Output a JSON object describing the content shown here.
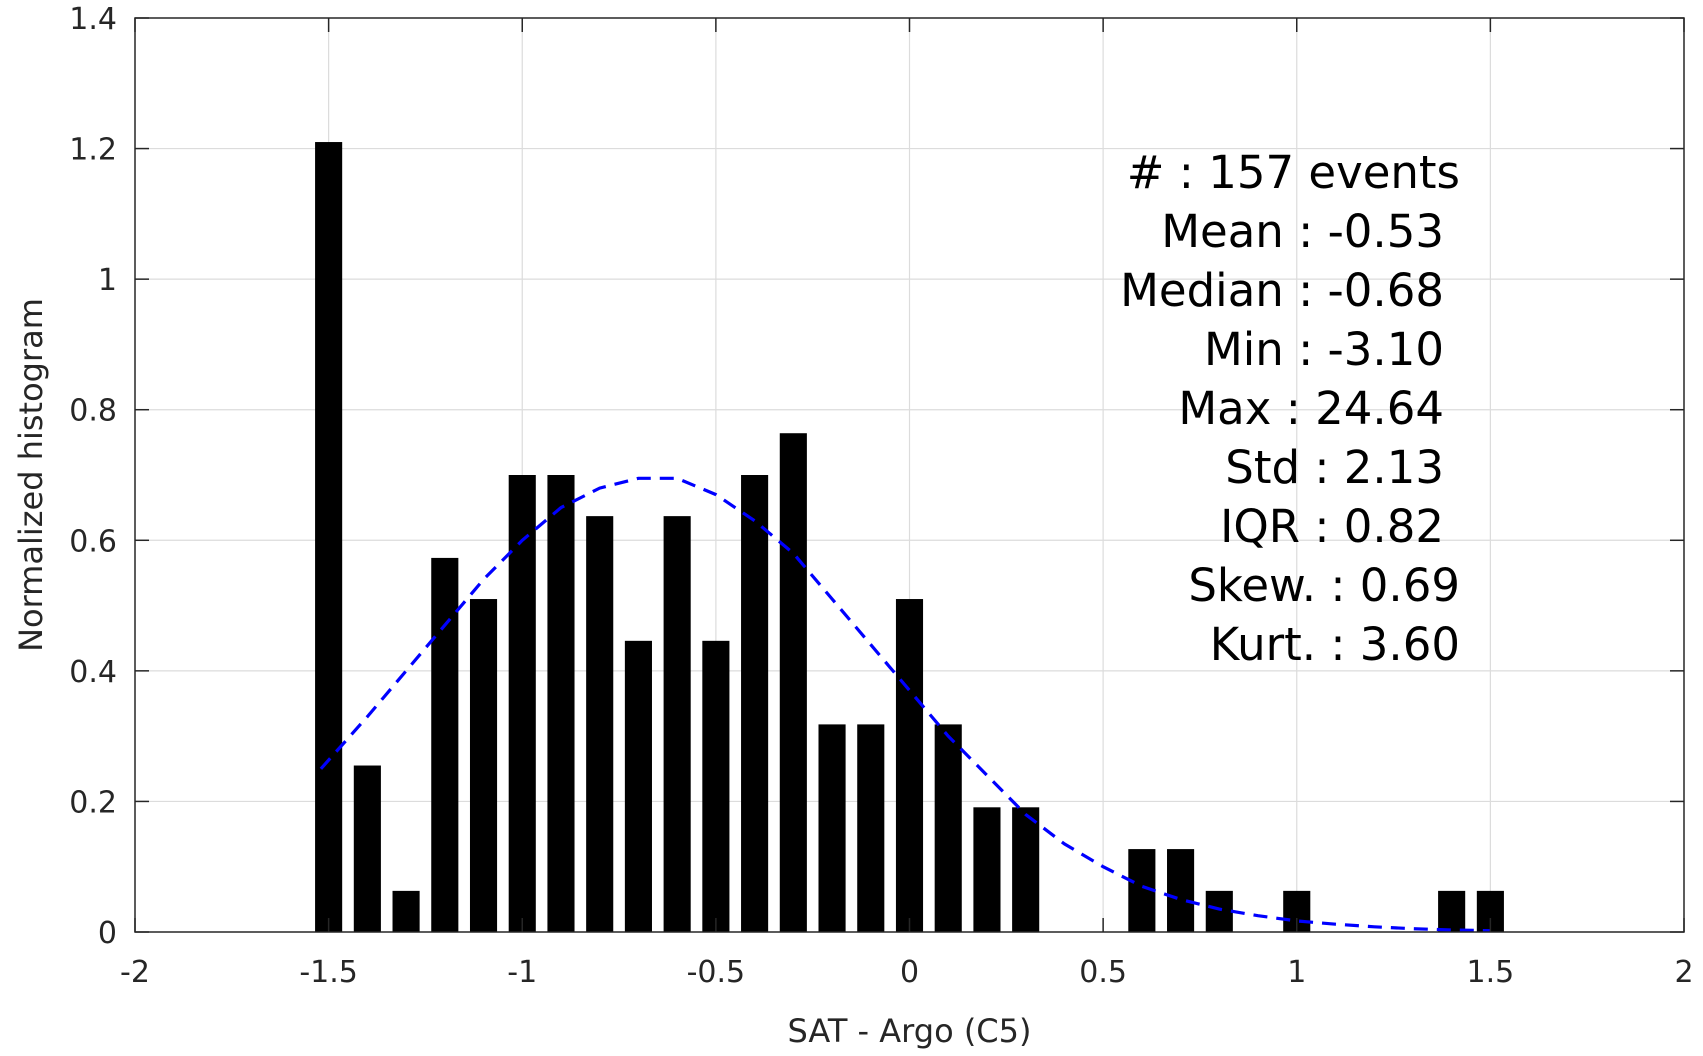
{
  "chart_data": {
    "type": "bar",
    "xlabel": "SAT - Argo (C5)",
    "ylabel": "Normalized histogram",
    "xlim": [
      -2,
      2
    ],
    "ylim": [
      0,
      1.4
    ],
    "xticks": [
      -2,
      -1.5,
      -1,
      -0.5,
      0,
      0.5,
      1,
      1.5,
      2
    ],
    "xtick_labels": [
      "-2",
      "-1.5",
      "-1",
      "-0.5",
      "0",
      "0.5",
      "1",
      "1.5",
      "2"
    ],
    "yticks": [
      0,
      0.2,
      0.4,
      0.6,
      0.8,
      1,
      1.2,
      1.4
    ],
    "ytick_labels": [
      "0",
      "0.2",
      "0.4",
      "0.6",
      "0.8",
      "1",
      "1.2",
      "1.4"
    ],
    "grid": true,
    "bar_color": "#000000",
    "bar_width": 0.07,
    "bars": {
      "x": [
        -1.5,
        -1.4,
        -1.3,
        -1.2,
        -1.1,
        -1.0,
        -0.9,
        -0.8,
        -0.7,
        -0.6,
        -0.5,
        -0.4,
        -0.3,
        -0.2,
        -0.1,
        0.0,
        0.1,
        0.2,
        0.3,
        0.6,
        0.7,
        0.8,
        1.0,
        1.4,
        1.5
      ],
      "values": [
        1.21,
        0.255,
        0.063,
        0.573,
        0.51,
        0.7,
        0.7,
        0.637,
        0.446,
        0.637,
        0.446,
        0.7,
        0.764,
        0.318,
        0.318,
        0.51,
        0.318,
        0.191,
        0.191,
        0.127,
        0.127,
        0.063,
        0.063,
        0.063,
        0.063
      ]
    },
    "fit_curve": {
      "color": "#0000ff",
      "style": "dashed",
      "x": [
        -1.52,
        -1.4,
        -1.3,
        -1.2,
        -1.1,
        -1.0,
        -0.9,
        -0.8,
        -0.7,
        -0.6,
        -0.5,
        -0.4,
        -0.3,
        -0.2,
        -0.1,
        0.0,
        0.1,
        0.2,
        0.3,
        0.4,
        0.5,
        0.6,
        0.7,
        0.8,
        0.9,
        1.0,
        1.1,
        1.2,
        1.3,
        1.4,
        1.5
      ],
      "values": [
        0.25,
        0.33,
        0.4,
        0.47,
        0.54,
        0.6,
        0.65,
        0.68,
        0.695,
        0.695,
        0.67,
        0.63,
        0.58,
        0.51,
        0.44,
        0.37,
        0.3,
        0.24,
        0.18,
        0.135,
        0.1,
        0.07,
        0.05,
        0.035,
        0.025,
        0.017,
        0.012,
        0.008,
        0.005,
        0.003,
        0.002
      ]
    },
    "stats": [
      {
        "label": "#  : 157 events"
      },
      {
        "label": "Mean : -0.53"
      },
      {
        "label": "Median : -0.68"
      },
      {
        "label": "Min : -3.10"
      },
      {
        "label": "Max : 24.64"
      },
      {
        "label": "Std : 2.13"
      },
      {
        "label": "IQR : 0.82"
      },
      {
        "label": "Skew. : 0.69"
      },
      {
        "label": "Kurt. : 3.60"
      }
    ]
  }
}
